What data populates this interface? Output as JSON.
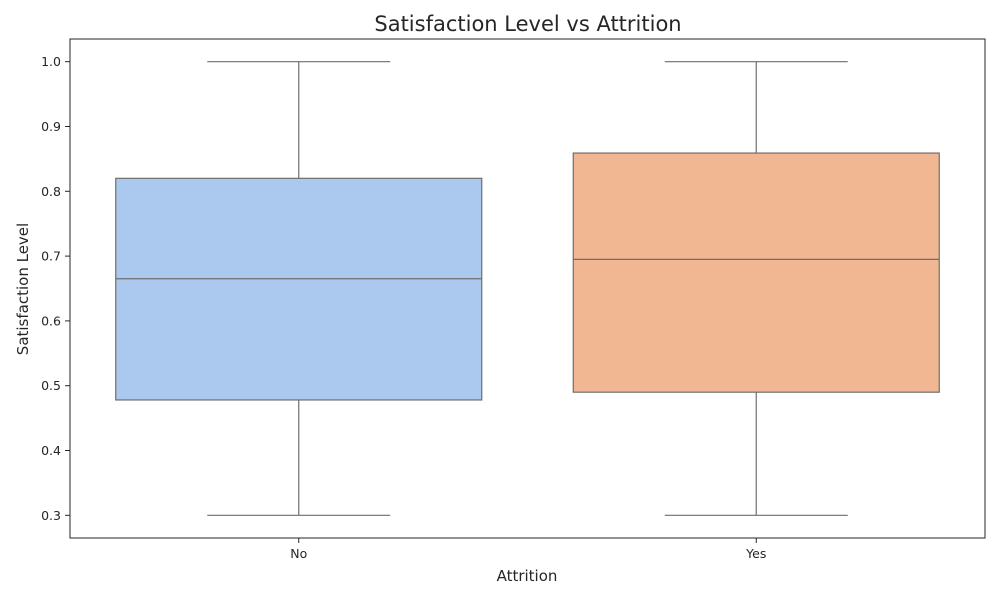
{
  "chart_data": {
    "type": "box",
    "title": "Satisfaction Level vs Attrition",
    "xlabel": "Attrition",
    "ylabel": "Satisfaction Level",
    "ylim": [
      0.265,
      1.035
    ],
    "yticks": [
      "0.3",
      "0.4",
      "0.5",
      "0.6",
      "0.7",
      "0.8",
      "0.9",
      "1.0"
    ],
    "grid": false,
    "categories": [
      "No",
      "Yes"
    ],
    "boxes": [
      {
        "category": "No",
        "min": 0.3,
        "q1": 0.478,
        "median": 0.665,
        "q3": 0.82,
        "max": 1.0,
        "color": "#abc9ee"
      },
      {
        "category": "Yes",
        "min": 0.3,
        "q1": 0.49,
        "median": 0.695,
        "q3": 0.859,
        "max": 1.0,
        "color": "#f0b792"
      }
    ],
    "line_color": "#6e6e6e"
  }
}
